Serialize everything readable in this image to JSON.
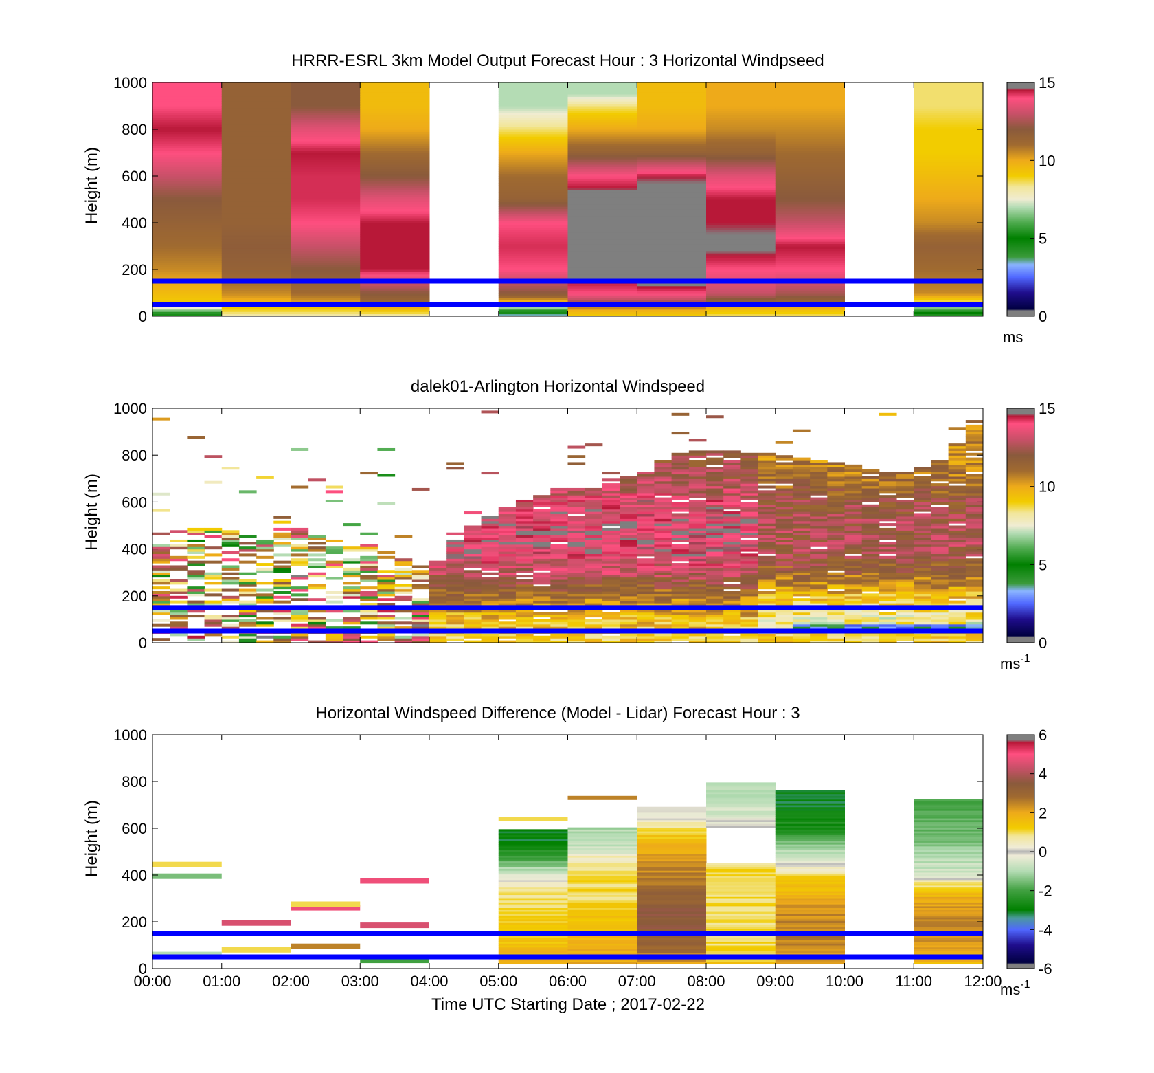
{
  "figure": {
    "xlabel": "Time UTC  Starting Date ; 2017-02-22",
    "x_tick_labels": [
      "00:00",
      "01:00",
      "02:00",
      "03:00",
      "04:00",
      "05:00",
      "06:00",
      "07:00",
      "08:00",
      "09:00",
      "10:00",
      "11:00",
      "12:00"
    ]
  },
  "chart_data": [
    {
      "type": "heatmap",
      "title": "HRRR-ESRL 3km Model Output   Forecast Hour : 3 Horizontal Windpseed",
      "ylabel": "Height (m)",
      "xlim": [
        "00:00",
        "12:00"
      ],
      "ylim": [
        0,
        1000
      ],
      "y_ticks": [
        0,
        200,
        400,
        600,
        800,
        1000
      ],
      "reference_lines_m": [
        150,
        50
      ],
      "reference_line_color": "#0000ff",
      "colorbar": {
        "range": [
          0,
          15
        ],
        "ticks": [
          0,
          5,
          10,
          15
        ],
        "unit": "ms",
        "unit_sup": ""
      },
      "columns": [
        {
          "hour": 0,
          "profile": [
            [
              0,
              4
            ],
            [
              30,
              7
            ],
            [
              50,
              9
            ],
            [
              100,
              9.5
            ],
            [
              200,
              10.5
            ],
            [
              300,
              11
            ],
            [
              400,
              11.5
            ],
            [
              500,
              12
            ],
            [
              600,
              13
            ],
            [
              700,
              14
            ],
            [
              800,
              14.5
            ],
            [
              900,
              14
            ]
          ]
        },
        {
          "hour": 1,
          "profile": [
            [
              0,
              8
            ],
            [
              30,
              9
            ],
            [
              50,
              9.5
            ],
            [
              100,
              10.5
            ],
            [
              200,
              11.5
            ],
            [
              300,
              11.8
            ],
            [
              400,
              11.5
            ],
            [
              500,
              11.5
            ],
            [
              600,
              11.5
            ],
            [
              700,
              11.5
            ],
            [
              800,
              11.5
            ],
            [
              900,
              11.5
            ]
          ]
        },
        {
          "hour": 2,
          "profile": [
            [
              0,
              8
            ],
            [
              30,
              9
            ],
            [
              50,
              10
            ],
            [
              100,
              11
            ],
            [
              200,
              12
            ],
            [
              300,
              13
            ],
            [
              400,
              14
            ],
            [
              500,
              14.3
            ],
            [
              600,
              14.3
            ],
            [
              700,
              14.5
            ],
            [
              800,
              13.5
            ],
            [
              900,
              12
            ]
          ]
        },
        {
          "hour": 3,
          "profile": [
            [
              0,
              8
            ],
            [
              30,
              9.5
            ],
            [
              50,
              11
            ],
            [
              100,
              12
            ],
            [
              200,
              14.5
            ],
            [
              300,
              14.5
            ],
            [
              400,
              14.5
            ],
            [
              500,
              13.5
            ],
            [
              600,
              12
            ],
            [
              700,
              11
            ],
            [
              800,
              10
            ],
            [
              900,
              9.5
            ]
          ]
        },
        {
          "hour": 4,
          "profile": []
        },
        {
          "hour": 5,
          "profile": [
            [
              0,
              3
            ],
            [
              30,
              6
            ],
            [
              50,
              9
            ],
            [
              100,
              12
            ],
            [
              200,
              14
            ],
            [
              300,
              14.3
            ],
            [
              400,
              14
            ],
            [
              500,
              11.5
            ],
            [
              600,
              11
            ],
            [
              700,
              10
            ],
            [
              800,
              8.5
            ],
            [
              900,
              7
            ]
          ]
        },
        {
          "hour": 6,
          "profile": [
            [
              0,
              9
            ],
            [
              30,
              10
            ],
            [
              50,
              12
            ],
            [
              100,
              14
            ],
            [
              150,
              14.5
            ],
            [
              200,
              null
            ],
            [
              300,
              null
            ],
            [
              400,
              null
            ],
            [
              500,
              15
            ],
            [
              600,
              14
            ],
            [
              700,
              11.5
            ],
            [
              800,
              10
            ],
            [
              900,
              8.5
            ],
            [
              950,
              7
            ]
          ]
        },
        {
          "hour": 7,
          "profile": [
            [
              0,
              9
            ],
            [
              30,
              10
            ],
            [
              50,
              12
            ],
            [
              100,
              14
            ],
            [
              150,
              15
            ],
            [
              200,
              null
            ],
            [
              300,
              null
            ],
            [
              400,
              null
            ],
            [
              500,
              15
            ],
            [
              600,
              14.5
            ],
            [
              700,
              11.5
            ],
            [
              800,
              10
            ],
            [
              900,
              9.5
            ]
          ]
        },
        {
          "hour": 8,
          "profile": [
            [
              0,
              8.5
            ],
            [
              30,
              9.5
            ],
            [
              50,
              11
            ],
            [
              100,
              13
            ],
            [
              200,
              14
            ],
            [
              300,
              14.8
            ],
            [
              400,
              14.5
            ],
            [
              500,
              14.5
            ],
            [
              600,
              13.5
            ],
            [
              700,
              11.5
            ],
            [
              800,
              10.5
            ],
            [
              900,
              10
            ]
          ]
        },
        {
          "hour": 9,
          "profile": [
            [
              0,
              8.5
            ],
            [
              30,
              9.5
            ],
            [
              50,
              11
            ],
            [
              100,
              12.5
            ],
            [
              200,
              14
            ],
            [
              300,
              14.5
            ],
            [
              400,
              13
            ],
            [
              500,
              12
            ],
            [
              600,
              11.5
            ],
            [
              700,
              11
            ],
            [
              800,
              10.5
            ],
            [
              900,
              10
            ]
          ]
        },
        {
          "hour": 10,
          "profile": []
        },
        {
          "hour": 11,
          "profile": [
            [
              0,
              4
            ],
            [
              30,
              6
            ],
            [
              50,
              8
            ],
            [
              100,
              10.5
            ],
            [
              200,
              11
            ],
            [
              300,
              11.5
            ],
            [
              400,
              10.5
            ],
            [
              500,
              10
            ],
            [
              600,
              9.5
            ],
            [
              700,
              9
            ],
            [
              800,
              9
            ],
            [
              900,
              8.5
            ]
          ]
        }
      ]
    },
    {
      "type": "heatmap",
      "title": "dalek01-Arlington  Horizontal Windspeed",
      "ylabel": "Height (m)",
      "xlim": [
        "00:00",
        "12:00"
      ],
      "ylim": [
        0,
        1000
      ],
      "y_ticks": [
        0,
        200,
        400,
        600,
        800,
        1000
      ],
      "reference_lines_m": [
        150,
        50
      ],
      "reference_line_color": "#0000ff",
      "colorbar": {
        "range": [
          0,
          15
        ],
        "ticks": [
          0,
          5,
          10,
          15
        ],
        "unit": "ms",
        "unit_sup": "-1"
      },
      "time_step_hours": 0.25,
      "data_top_m": [
        [
          0,
          450
        ],
        [
          0.5,
          500
        ],
        [
          1,
          480
        ],
        [
          1.5,
          450
        ],
        [
          2,
          500
        ],
        [
          2.5,
          460
        ],
        [
          3,
          420
        ],
        [
          3.5,
          400
        ],
        [
          4,
          300
        ],
        [
          4.5,
          480
        ],
        [
          5,
          560
        ],
        [
          5.5,
          620
        ],
        [
          6,
          650
        ],
        [
          6.5,
          660
        ],
        [
          7,
          720
        ],
        [
          7.5,
          800
        ],
        [
          8,
          820
        ],
        [
          8.5,
          810
        ],
        [
          9,
          800
        ],
        [
          9.5,
          780
        ],
        [
          10,
          760
        ],
        [
          10.5,
          730
        ],
        [
          11,
          730
        ],
        [
          11.5,
          790
        ],
        [
          12,
          1000
        ]
      ],
      "speed_profile_ms": [
        [
          0,
          9
        ],
        [
          100,
          9.5
        ],
        [
          200,
          11
        ],
        [
          300,
          13
        ],
        [
          400,
          14
        ],
        [
          500,
          14
        ],
        [
          600,
          13.5
        ],
        [
          700,
          12.5
        ],
        [
          800,
          12
        ]
      ]
    },
    {
      "type": "heatmap",
      "title": "Horizontal Windspeed Difference (Model - Lidar) Forecast Hour : 3",
      "ylabel": "Height (m)",
      "xlim": [
        "00:00",
        "12:00"
      ],
      "ylim": [
        0,
        1000
      ],
      "y_ticks": [
        0,
        200,
        400,
        600,
        800,
        1000
      ],
      "reference_lines_m": [
        150,
        50
      ],
      "reference_line_color": "#0000ff",
      "colorbar": {
        "range": [
          -6,
          6
        ],
        "ticks": [
          -6,
          -4,
          -2,
          0,
          2,
          4,
          6
        ],
        "unit": "ms",
        "unit_sup": "-1"
      },
      "columns": [
        {
          "hour": 5,
          "top": 590,
          "profile": [
            [
              0,
              2
            ],
            [
              100,
              1.5
            ],
            [
              200,
              1.2
            ],
            [
              300,
              1
            ],
            [
              350,
              0.5
            ],
            [
              400,
              -0.5
            ],
            [
              450,
              -1.5
            ],
            [
              500,
              -2.5
            ],
            [
              550,
              -3
            ]
          ],
          "cap": [
            640,
            1
          ]
        },
        {
          "hour": 6,
          "top": 600,
          "profile": [
            [
              0,
              2
            ],
            [
              100,
              1.8
            ],
            [
              200,
              1.5
            ],
            [
              300,
              1
            ],
            [
              400,
              1
            ],
            [
              480,
              0.5
            ],
            [
              500,
              -0.5
            ],
            [
              560,
              -1
            ]
          ],
          "cap": [
            730,
            2.5
          ]
        },
        {
          "hour": 7,
          "top": 690,
          "profile": [
            [
              0,
              2
            ],
            [
              100,
              3
            ],
            [
              200,
              3.5
            ],
            [
              300,
              3.2
            ],
            [
              400,
              2.5
            ],
            [
              500,
              2
            ],
            [
              600,
              1
            ],
            [
              650,
              0
            ]
          ]
        },
        {
          "hour": 8,
          "top": 790,
          "profile": [
            [
              0,
              1.5
            ],
            [
              100,
              1
            ],
            [
              200,
              1
            ],
            [
              300,
              1
            ],
            [
              400,
              1
            ],
            [
              450,
              1
            ],
            [
              500,
              null
            ],
            [
              600,
              0
            ],
            [
              700,
              -0.8
            ],
            [
              750,
              -1
            ]
          ]
        },
        {
          "hour": 9,
          "top": 760,
          "profile": [
            [
              0,
              2
            ],
            [
              100,
              2.5
            ],
            [
              200,
              2.5
            ],
            [
              300,
              2
            ],
            [
              400,
              1
            ],
            [
              450,
              0
            ],
            [
              500,
              -1
            ],
            [
              600,
              -2.5
            ],
            [
              700,
              -3
            ]
          ]
        },
        {
          "hour": 11,
          "top": 720,
          "profile": [
            [
              0,
              1.5
            ],
            [
              100,
              2.2
            ],
            [
              200,
              2.5
            ],
            [
              300,
              2
            ],
            [
              380,
              0.5
            ],
            [
              400,
              -0.5
            ],
            [
              500,
              -1.2
            ],
            [
              600,
              -1.6
            ],
            [
              700,
              -1.8
            ]
          ]
        }
      ],
      "streaks": [
        {
          "t0": 0,
          "t1": 1,
          "h": 445,
          "v": 1
        },
        {
          "t0": 0,
          "t1": 1,
          "h": 395,
          "v": -1.5
        },
        {
          "t0": 1,
          "t1": 2,
          "h": 195,
          "v": 4.5
        },
        {
          "t0": 1,
          "t1": 2,
          "h": 80,
          "v": 1
        },
        {
          "t0": 0,
          "t1": 1,
          "h": 60,
          "v": -1
        },
        {
          "t0": 2,
          "t1": 3,
          "h": 260,
          "v": 4.8
        },
        {
          "t0": 2,
          "t1": 3,
          "h": 275,
          "v": 1
        },
        {
          "t0": 2,
          "t1": 3,
          "h": 95,
          "v": 2.5
        },
        {
          "t0": 3,
          "t1": 4,
          "h": 375,
          "v": 4.8
        },
        {
          "t0": 3,
          "t1": 4,
          "h": 185,
          "v": 4.5
        },
        {
          "t0": 3,
          "t1": 4,
          "h": 35,
          "v": -2
        }
      ]
    }
  ]
}
